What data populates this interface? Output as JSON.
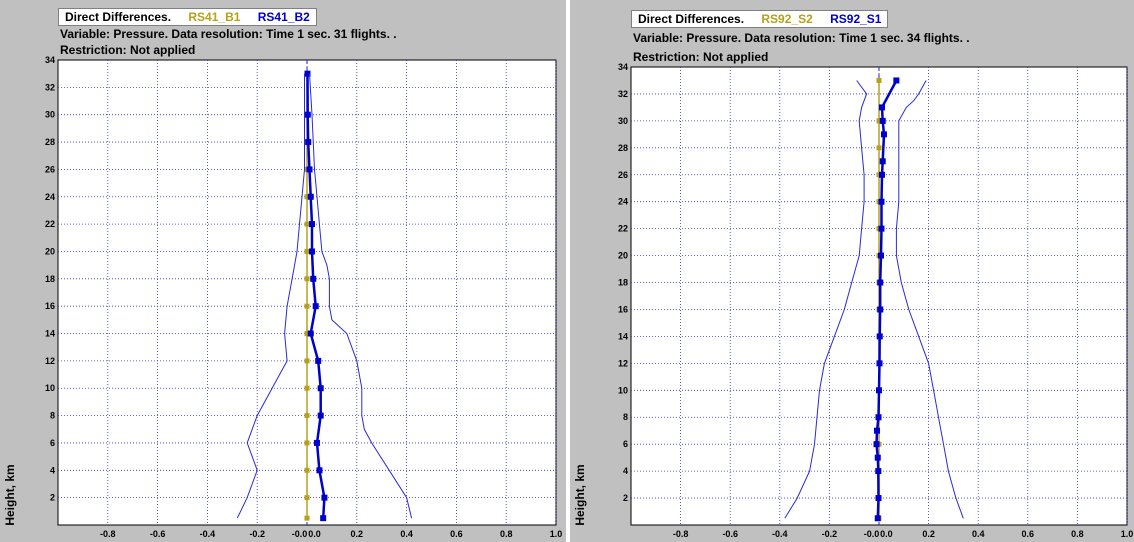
{
  "panels": [
    {
      "legend_title": "Direct Differences.",
      "series_label_1": "RS41_B1",
      "series_label_2": "RS41_B2",
      "variable_line": "Variable: Pressure. Data resolution: Time 1 sec. 31 flights.  .",
      "restriction_line": "Restriction: Not applied"
    },
    {
      "legend_title": "Direct Differences.",
      "series_label_1": "RS92_S2",
      "series_label_2": "RS92_S1",
      "variable_line": "Variable: Pressure. Data resolution: Time 1 sec. 34 flights.  .",
      "restriction_line": "Restriction: Not applied"
    }
  ],
  "colors": {
    "reference": "#b5a21a",
    "series": "#0000cc",
    "envelope": "#2a2ad4",
    "grid": "#3333cc",
    "frame_bg": "#c0c0c0"
  },
  "chart_data": [
    {
      "type": "line",
      "ylabel": "Height, km",
      "xlim": [
        -1.0,
        1.0
      ],
      "ylim": [
        0,
        34
      ],
      "x_ticks": [
        "-0.8",
        "-0.6",
        "-0.4",
        "-0.2",
        "-0.0",
        "0.0",
        "0.2",
        "0.4",
        "0.6",
        "0.8",
        "1.0"
      ],
      "y_ticks": [
        "2",
        "4",
        "6",
        "8",
        "10",
        "12",
        "14",
        "16",
        "18",
        "20",
        "22",
        "24",
        "26",
        "28",
        "30",
        "32",
        "34"
      ],
      "grid": true,
      "series": [
        {
          "name": "RS41_B1",
          "role": "reference",
          "color": "#b5a21a",
          "x": [
            0,
            0,
            0,
            0,
            0,
            0,
            0,
            0,
            0,
            0,
            0,
            0,
            0,
            0,
            0,
            0,
            0
          ],
          "y": [
            0.5,
            2,
            4,
            6,
            8,
            10,
            12,
            14,
            16,
            18,
            20,
            22,
            24,
            26,
            28,
            30,
            33
          ]
        },
        {
          "name": "RS41_B2",
          "role": "mean",
          "color": "#0000cc",
          "x": [
            0.065,
            0.07,
            0.05,
            0.04,
            0.055,
            0.055,
            0.045,
            0.015,
            0.035,
            0.025,
            0.02,
            0.02,
            0.015,
            0.01,
            0.005,
            0.003,
            0.002
          ],
          "y": [
            0.5,
            2,
            4,
            6,
            8,
            10,
            12,
            14,
            16,
            18,
            20,
            22,
            24,
            26,
            28,
            30,
            33
          ]
        },
        {
          "role": "lower-envelope",
          "color": "#2a2ad4",
          "x": [
            -0.28,
            -0.24,
            -0.2,
            -0.22,
            -0.24,
            -0.2,
            -0.14,
            -0.08,
            -0.09,
            -0.08,
            -0.06,
            -0.04,
            -0.03,
            -0.02,
            -0.01,
            -0.01,
            -0.01
          ],
          "y": [
            0.5,
            2,
            4,
            5,
            6,
            8,
            10,
            12,
            14,
            16,
            18,
            20,
            22,
            24,
            26,
            28,
            33
          ]
        },
        {
          "role": "upper-envelope",
          "color": "#2a2ad4",
          "x": [
            0.42,
            0.4,
            0.33,
            0.26,
            0.23,
            0.22,
            0.22,
            0.2,
            0.16,
            0.1,
            0.09,
            0.09,
            0.08,
            0.06,
            0.05,
            0.04,
            0.03,
            0.02,
            0.01
          ],
          "y": [
            0.5,
            2,
            4,
            6,
            7,
            8,
            10,
            12,
            14,
            15,
            16,
            18,
            19,
            20,
            22,
            24,
            26,
            30,
            33
          ]
        }
      ]
    },
    {
      "type": "line",
      "ylabel": "Height, km",
      "xlim": [
        -1.0,
        1.0
      ],
      "ylim": [
        0,
        34
      ],
      "x_ticks": [
        "-0.8",
        "-0.6",
        "-0.4",
        "-0.2",
        "-0.0",
        "0.0",
        "0.2",
        "0.4",
        "0.6",
        "0.8",
        "1.0"
      ],
      "y_ticks": [
        "2",
        "4",
        "6",
        "8",
        "10",
        "12",
        "14",
        "16",
        "18",
        "20",
        "22",
        "24",
        "26",
        "28",
        "30",
        "32",
        "34"
      ],
      "grid": true,
      "series": [
        {
          "name": "RS92_S2",
          "role": "reference",
          "color": "#b5a21a",
          "x": [
            0,
            0,
            0,
            0,
            0,
            0,
            0,
            0,
            0,
            0,
            0,
            0,
            0,
            0,
            0,
            0,
            0
          ],
          "y": [
            0.5,
            2,
            4,
            6,
            8,
            10,
            12,
            14,
            16,
            18,
            20,
            22,
            24,
            26,
            28,
            30,
            33
          ]
        },
        {
          "name": "RS92_S1",
          "role": "mean",
          "color": "#0000cc",
          "x": [
            -0.005,
            -0.002,
            -0.003,
            -0.005,
            -0.01,
            -0.008,
            -0.002,
            0.0,
            0.002,
            0.003,
            0.005,
            0.005,
            0.008,
            0.01,
            0.01,
            0.012,
            0.015,
            0.02,
            0.015,
            0.012,
            0.07
          ],
          "y": [
            0.5,
            2,
            4,
            5,
            6,
            7,
            8,
            10,
            12,
            14,
            16,
            18,
            20,
            22,
            24,
            26,
            27,
            29,
            30,
            31,
            33
          ]
        },
        {
          "role": "lower-envelope",
          "color": "#2a2ad4",
          "x": [
            -0.38,
            -0.33,
            -0.28,
            -0.26,
            -0.25,
            -0.24,
            -0.22,
            -0.18,
            -0.14,
            -0.11,
            -0.08,
            -0.07,
            -0.06,
            -0.06,
            -0.07,
            -0.08,
            -0.07,
            -0.05,
            -0.09
          ],
          "y": [
            0.5,
            2,
            4,
            6,
            8,
            10,
            12,
            14,
            16,
            18,
            20,
            22,
            24,
            26,
            28,
            30,
            31,
            32,
            33
          ]
        },
        {
          "role": "upper-envelope",
          "color": "#2a2ad4",
          "x": [
            0.34,
            0.31,
            0.28,
            0.26,
            0.24,
            0.22,
            0.2,
            0.16,
            0.12,
            0.09,
            0.07,
            0.07,
            0.08,
            0.08,
            0.08,
            0.08,
            0.08,
            0.11,
            0.14,
            0.16,
            0.19
          ],
          "y": [
            0.5,
            2,
            4,
            6,
            8,
            10,
            12,
            14,
            16,
            18,
            20,
            22,
            24,
            26,
            28,
            29,
            30,
            31,
            31.5,
            32,
            33
          ]
        }
      ]
    }
  ]
}
